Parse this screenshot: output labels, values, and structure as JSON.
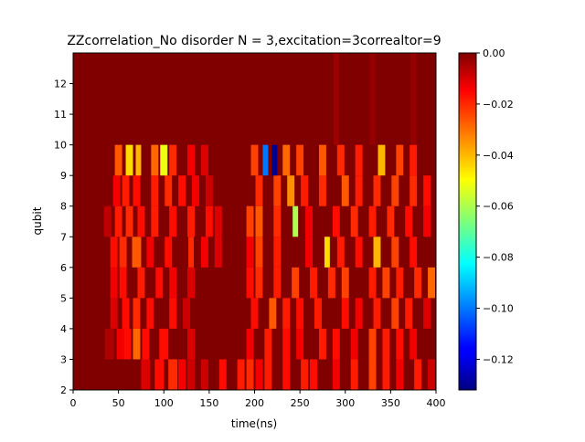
{
  "chart_data": {
    "type": "heatmap",
    "title": "ZZcorrelation_No disorder  N =  3,excitation=3correaltor=9",
    "xlabel": "time(ns)",
    "ylabel": "qubit",
    "xlim": [
      0,
      400
    ],
    "ylim": [
      2,
      13
    ],
    "x_ticks": [
      "0",
      "50",
      "100",
      "150",
      "200",
      "250",
      "300",
      "350",
      "400"
    ],
    "y_ticks": [
      "2",
      "3",
      "4",
      "5",
      "6",
      "7",
      "8",
      "9",
      "10",
      "11",
      "12"
    ],
    "colorbar": {
      "colormap": "jet",
      "vmin": -0.132,
      "vmax": 0.0,
      "ticks": [
        "0.00",
        "−0.02",
        "−0.04",
        "−0.06",
        "−0.08",
        "−0.10",
        "−0.12"
      ],
      "tick_values": [
        0.0,
        -0.02,
        -0.04,
        -0.06,
        -0.08,
        -0.1,
        -0.12
      ]
    },
    "rows": [
      {
        "qubit": "2-3",
        "features": [
          {
            "t": 80,
            "v": -0.012,
            "w": 10
          },
          {
            "t": 95,
            "v": -0.018,
            "w": 10
          },
          {
            "t": 110,
            "v": -0.022,
            "w": 10
          },
          {
            "t": 120,
            "v": -0.015,
            "w": 8
          },
          {
            "t": 130,
            "v": -0.01,
            "w": 8
          },
          {
            "t": 145,
            "v": -0.01,
            "w": 8
          },
          {
            "t": 165,
            "v": -0.018,
            "w": 8
          },
          {
            "t": 185,
            "v": -0.02,
            "w": 8
          },
          {
            "t": 195,
            "v": -0.022,
            "w": 8
          },
          {
            "t": 205,
            "v": -0.015,
            "w": 8
          },
          {
            "t": 215,
            "v": -0.02,
            "w": 8
          },
          {
            "t": 235,
            "v": -0.018,
            "w": 8
          },
          {
            "t": 255,
            "v": -0.02,
            "w": 8
          },
          {
            "t": 265,
            "v": -0.018,
            "w": 8
          },
          {
            "t": 290,
            "v": -0.015,
            "w": 8
          },
          {
            "t": 310,
            "v": -0.02,
            "w": 8
          },
          {
            "t": 330,
            "v": -0.025,
            "w": 8
          },
          {
            "t": 345,
            "v": -0.02,
            "w": 8
          },
          {
            "t": 360,
            "v": -0.015,
            "w": 8
          },
          {
            "t": 380,
            "v": -0.02,
            "w": 8
          },
          {
            "t": 395,
            "v": -0.01,
            "w": 8
          }
        ]
      },
      {
        "qubit": "3-4",
        "features": [
          {
            "t": 40,
            "v": -0.006,
            "w": 10
          },
          {
            "t": 52,
            "v": -0.015,
            "w": 8
          },
          {
            "t": 60,
            "v": -0.018,
            "w": 8
          },
          {
            "t": 70,
            "v": -0.03,
            "w": 8
          },
          {
            "t": 80,
            "v": -0.018,
            "w": 8
          },
          {
            "t": 100,
            "v": -0.018,
            "w": 10
          },
          {
            "t": 130,
            "v": -0.012,
            "w": 8
          },
          {
            "t": 195,
            "v": -0.015,
            "w": 8
          },
          {
            "t": 215,
            "v": -0.02,
            "w": 8
          },
          {
            "t": 235,
            "v": -0.018,
            "w": 8
          },
          {
            "t": 250,
            "v": -0.015,
            "w": 8
          },
          {
            "t": 275,
            "v": -0.02,
            "w": 8
          },
          {
            "t": 290,
            "v": -0.018,
            "w": 8
          },
          {
            "t": 310,
            "v": -0.015,
            "w": 8
          },
          {
            "t": 330,
            "v": -0.025,
            "w": 8
          },
          {
            "t": 345,
            "v": -0.02,
            "w": 8
          },
          {
            "t": 360,
            "v": -0.018,
            "w": 8
          },
          {
            "t": 375,
            "v": -0.015,
            "w": 8
          }
        ]
      },
      {
        "qubit": "4-5",
        "features": [
          {
            "t": 45,
            "v": -0.012,
            "w": 8
          },
          {
            "t": 58,
            "v": -0.018,
            "w": 8
          },
          {
            "t": 70,
            "v": -0.022,
            "w": 8
          },
          {
            "t": 85,
            "v": -0.018,
            "w": 8
          },
          {
            "t": 110,
            "v": -0.018,
            "w": 8
          },
          {
            "t": 125,
            "v": -0.01,
            "w": 8
          },
          {
            "t": 200,
            "v": -0.018,
            "w": 8
          },
          {
            "t": 220,
            "v": -0.028,
            "w": 8
          },
          {
            "t": 235,
            "v": -0.02,
            "w": 8
          },
          {
            "t": 250,
            "v": -0.018,
            "w": 8
          },
          {
            "t": 270,
            "v": -0.02,
            "w": 8
          },
          {
            "t": 300,
            "v": -0.018,
            "w": 8
          },
          {
            "t": 315,
            "v": -0.015,
            "w": 8
          },
          {
            "t": 335,
            "v": -0.02,
            "w": 8
          },
          {
            "t": 355,
            "v": -0.025,
            "w": 8
          },
          {
            "t": 370,
            "v": -0.02,
            "w": 8
          },
          {
            "t": 390,
            "v": -0.012,
            "w": 8
          }
        ]
      },
      {
        "qubit": "5-6",
        "features": [
          {
            "t": 45,
            "v": -0.015,
            "w": 8
          },
          {
            "t": 55,
            "v": -0.018,
            "w": 8
          },
          {
            "t": 75,
            "v": -0.02,
            "w": 8
          },
          {
            "t": 95,
            "v": -0.018,
            "w": 8
          },
          {
            "t": 110,
            "v": -0.015,
            "w": 8
          },
          {
            "t": 130,
            "v": -0.012,
            "w": 8
          },
          {
            "t": 195,
            "v": -0.018,
            "w": 8
          },
          {
            "t": 205,
            "v": -0.022,
            "w": 8
          },
          {
            "t": 225,
            "v": -0.02,
            "w": 8
          },
          {
            "t": 245,
            "v": -0.025,
            "w": 8
          },
          {
            "t": 265,
            "v": -0.02,
            "w": 8
          },
          {
            "t": 285,
            "v": -0.022,
            "w": 8
          },
          {
            "t": 300,
            "v": -0.025,
            "w": 8
          },
          {
            "t": 330,
            "v": -0.02,
            "w": 8
          },
          {
            "t": 345,
            "v": -0.025,
            "w": 8
          },
          {
            "t": 360,
            "v": -0.02,
            "w": 8
          },
          {
            "t": 380,
            "v": -0.022,
            "w": 8
          },
          {
            "t": 395,
            "v": -0.03,
            "w": 8
          }
        ]
      },
      {
        "qubit": "6-7",
        "features": [
          {
            "t": 45,
            "v": -0.018,
            "w": 8
          },
          {
            "t": 55,
            "v": -0.022,
            "w": 8
          },
          {
            "t": 70,
            "v": -0.028,
            "w": 10
          },
          {
            "t": 85,
            "v": -0.015,
            "w": 8
          },
          {
            "t": 105,
            "v": -0.018,
            "w": 8
          },
          {
            "t": 130,
            "v": -0.022,
            "w": 6
          },
          {
            "t": 145,
            "v": -0.015,
            "w": 8
          },
          {
            "t": 160,
            "v": -0.012,
            "w": 8
          },
          {
            "t": 195,
            "v": -0.015,
            "w": 8
          },
          {
            "t": 205,
            "v": -0.025,
            "w": 8
          },
          {
            "t": 225,
            "v": -0.02,
            "w": 8
          },
          {
            "t": 260,
            "v": -0.015,
            "w": 8
          },
          {
            "t": 280,
            "v": -0.045,
            "w": 6
          },
          {
            "t": 295,
            "v": -0.02,
            "w": 8
          },
          {
            "t": 315,
            "v": -0.018,
            "w": 8
          },
          {
            "t": 335,
            "v": -0.04,
            "w": 8
          },
          {
            "t": 355,
            "v": -0.025,
            "w": 8
          },
          {
            "t": 375,
            "v": -0.018,
            "w": 8
          }
        ]
      },
      {
        "qubit": "7-8",
        "features": [
          {
            "t": 38,
            "v": -0.008,
            "w": 8
          },
          {
            "t": 50,
            "v": -0.02,
            "w": 8
          },
          {
            "t": 62,
            "v": -0.022,
            "w": 8
          },
          {
            "t": 75,
            "v": -0.018,
            "w": 8
          },
          {
            "t": 90,
            "v": -0.02,
            "w": 8
          },
          {
            "t": 110,
            "v": -0.018,
            "w": 8
          },
          {
            "t": 130,
            "v": -0.02,
            "w": 8
          },
          {
            "t": 150,
            "v": -0.018,
            "w": 8
          },
          {
            "t": 160,
            "v": -0.012,
            "w": 8
          },
          {
            "t": 195,
            "v": -0.025,
            "w": 8
          },
          {
            "t": 205,
            "v": -0.028,
            "w": 8
          },
          {
            "t": 225,
            "v": -0.022,
            "w": 8
          },
          {
            "t": 245,
            "v": -0.06,
            "w": 6
          },
          {
            "t": 260,
            "v": -0.015,
            "w": 8
          },
          {
            "t": 290,
            "v": -0.018,
            "w": 8
          },
          {
            "t": 310,
            "v": -0.022,
            "w": 8
          },
          {
            "t": 330,
            "v": -0.02,
            "w": 8
          },
          {
            "t": 350,
            "v": -0.022,
            "w": 8
          },
          {
            "t": 370,
            "v": -0.018,
            "w": 8
          },
          {
            "t": 390,
            "v": -0.015,
            "w": 8
          }
        ]
      },
      {
        "qubit": "8-9",
        "features": [
          {
            "t": 48,
            "v": -0.015,
            "w": 8
          },
          {
            "t": 58,
            "v": -0.02,
            "w": 8
          },
          {
            "t": 70,
            "v": -0.018,
            "w": 8
          },
          {
            "t": 90,
            "v": -0.02,
            "w": 8
          },
          {
            "t": 105,
            "v": -0.022,
            "w": 8
          },
          {
            "t": 120,
            "v": -0.018,
            "w": 8
          },
          {
            "t": 135,
            "v": -0.015,
            "w": 8
          },
          {
            "t": 150,
            "v": -0.01,
            "w": 8
          },
          {
            "t": 205,
            "v": -0.022,
            "w": 8
          },
          {
            "t": 225,
            "v": -0.025,
            "w": 8
          },
          {
            "t": 240,
            "v": -0.035,
            "w": 8
          },
          {
            "t": 255,
            "v": -0.02,
            "w": 8
          },
          {
            "t": 275,
            "v": -0.022,
            "w": 8
          },
          {
            "t": 300,
            "v": -0.028,
            "w": 8
          },
          {
            "t": 315,
            "v": -0.02,
            "w": 8
          },
          {
            "t": 335,
            "v": -0.022,
            "w": 8
          },
          {
            "t": 355,
            "v": -0.025,
            "w": 8
          },
          {
            "t": 375,
            "v": -0.022,
            "w": 8
          },
          {
            "t": 390,
            "v": -0.018,
            "w": 8
          }
        ]
      },
      {
        "qubit": "9-10",
        "features": [
          {
            "t": 50,
            "v": -0.028,
            "w": 8
          },
          {
            "t": 62,
            "v": -0.045,
            "w": 8
          },
          {
            "t": 72,
            "v": -0.04,
            "w": 6
          },
          {
            "t": 90,
            "v": -0.03,
            "w": 8
          },
          {
            "t": 100,
            "v": -0.052,
            "w": 8
          },
          {
            "t": 110,
            "v": -0.022,
            "w": 8
          },
          {
            "t": 130,
            "v": -0.015,
            "w": 8
          },
          {
            "t": 145,
            "v": -0.012,
            "w": 8
          },
          {
            "t": 200,
            "v": -0.025,
            "w": 8
          },
          {
            "t": 212,
            "v": -0.1,
            "w": 6
          },
          {
            "t": 222,
            "v": -0.13,
            "w": 6
          },
          {
            "t": 235,
            "v": -0.03,
            "w": 8
          },
          {
            "t": 250,
            "v": -0.025,
            "w": 8
          },
          {
            "t": 275,
            "v": -0.028,
            "w": 8
          },
          {
            "t": 295,
            "v": -0.022,
            "w": 8
          },
          {
            "t": 315,
            "v": -0.02,
            "w": 8
          },
          {
            "t": 340,
            "v": -0.04,
            "w": 8
          },
          {
            "t": 360,
            "v": -0.025,
            "w": 8
          },
          {
            "t": 375,
            "v": -0.02,
            "w": 8
          }
        ]
      },
      {
        "qubit": "10-13",
        "features": [
          {
            "t": 290,
            "v": -0.004,
            "w": 6
          },
          {
            "t": 330,
            "v": -0.003,
            "w": 6
          },
          {
            "t": 375,
            "v": -0.003,
            "w": 6
          }
        ]
      }
    ]
  }
}
